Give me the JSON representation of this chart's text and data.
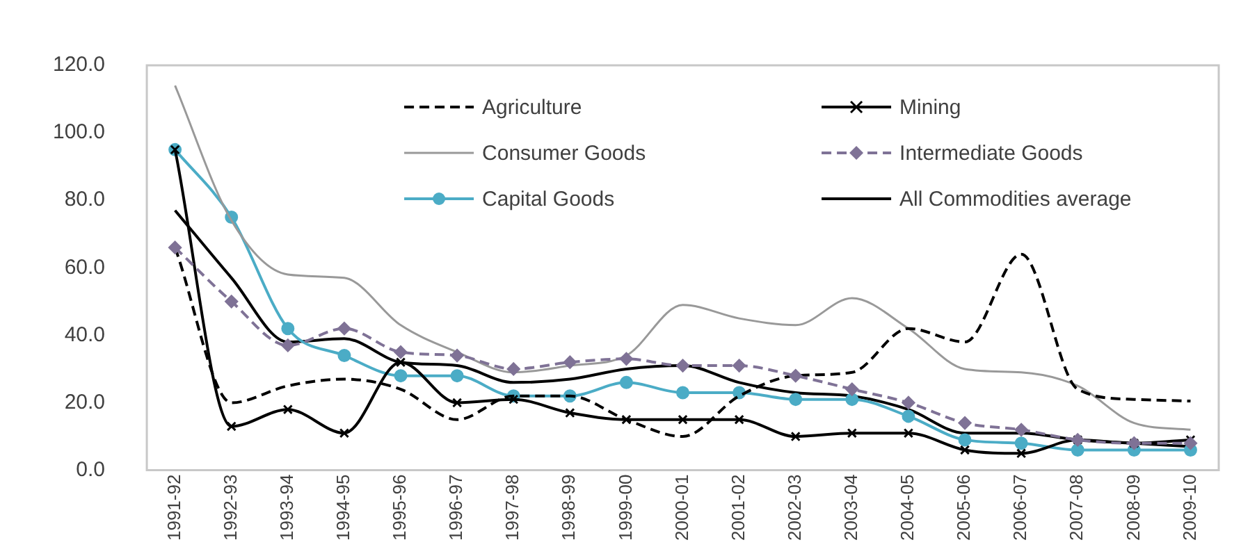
{
  "chart_data": {
    "type": "line",
    "categories": [
      "1991-92",
      "1992-93",
      "1993-94",
      "1994-95",
      "1995-96",
      "1996-97",
      "1997-98",
      "1998-99",
      "1999-00",
      "2000-01",
      "2001-02",
      "2002-03",
      "2003-04",
      "2004-05",
      "2005-06",
      "2006-07",
      "2007-08",
      "2008-09",
      "2009-10"
    ],
    "series": [
      {
        "name": "Agriculture",
        "color": "#000000",
        "line_style": "dashed",
        "marker": "none",
        "values": [
          66,
          20,
          25,
          27,
          24,
          15,
          22,
          22,
          15,
          10,
          22,
          28,
          29,
          42,
          38,
          64,
          24,
          21,
          20.5
        ]
      },
      {
        "name": "Mining",
        "color": "#000000",
        "line_style": "solid",
        "marker": "cross",
        "values": [
          95,
          13,
          18,
          11,
          32,
          20,
          21,
          17,
          15,
          15,
          15,
          10,
          11,
          11,
          6,
          5,
          9,
          8,
          9
        ]
      },
      {
        "name": "Consumer Goods",
        "color": "#999999",
        "line_style": "solid",
        "marker": "none",
        "values": [
          114,
          74,
          58,
          57,
          43,
          35,
          29,
          31,
          34,
          49,
          45,
          43,
          51,
          42,
          30,
          29,
          25,
          14,
          12
        ]
      },
      {
        "name": "Intermediate Goods",
        "color": "#7f7296",
        "line_style": "dashed",
        "marker": "diamond",
        "values": [
          66,
          50,
          37,
          42,
          35,
          34,
          30,
          32,
          33,
          31,
          31,
          28,
          24,
          20,
          14,
          12,
          9,
          8,
          8
        ]
      },
      {
        "name": "Capital Goods",
        "color": "#4bacc6",
        "line_style": "solid",
        "marker": "circle",
        "values": [
          95,
          75,
          42,
          34,
          28,
          28,
          22,
          22,
          26,
          23,
          23,
          21,
          21,
          16,
          9,
          8,
          6,
          6,
          6
        ]
      },
      {
        "name": "All Commodities average",
        "color": "#000000",
        "line_style": "solid",
        "marker": "none",
        "values": [
          77,
          57,
          38,
          39,
          32,
          31,
          26,
          27,
          30,
          31,
          26,
          23,
          22,
          18,
          11,
          11,
          9,
          8,
          7
        ]
      }
    ],
    "ylim": [
      0,
      120
    ],
    "yticks": [
      {
        "value": 0,
        "label": "0.0"
      },
      {
        "value": 20,
        "label": "20.0"
      },
      {
        "value": 40,
        "label": "40.0"
      },
      {
        "value": 60,
        "label": "60.0"
      },
      {
        "value": 80,
        "label": "80.0"
      },
      {
        "value": 100,
        "label": "100.0"
      },
      {
        "value": 120,
        "label": "120.0"
      }
    ],
    "grid": false,
    "legend": "top"
  }
}
